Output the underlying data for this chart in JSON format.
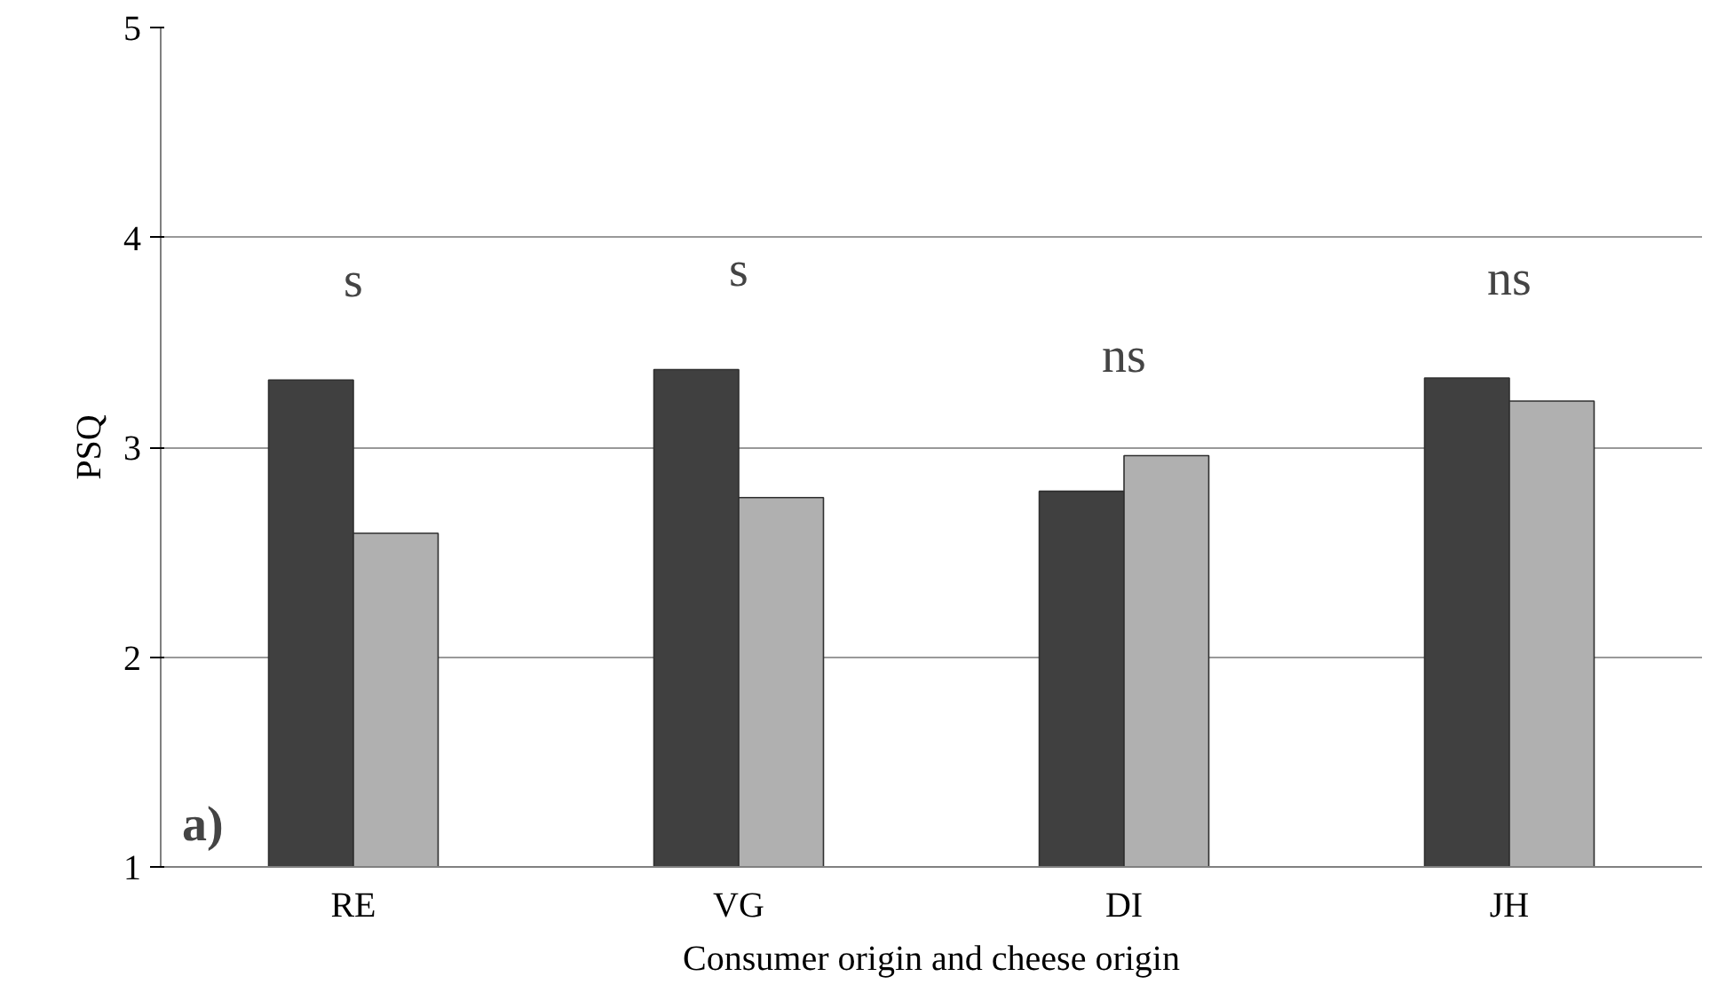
{
  "chart_data": {
    "type": "bar",
    "xlabel": "Consumer origin and cheese origin",
    "ylabel": "PSQ",
    "categories": [
      "RE",
      "VG",
      "DI",
      "JH"
    ],
    "series": [
      {
        "color": "#404040",
        "values": [
          3.32,
          3.37,
          2.79,
          3.33
        ]
      },
      {
        "color": "#b0b0b0",
        "values": [
          2.59,
          2.76,
          2.96,
          3.22
        ]
      }
    ],
    "ylim": [
      1,
      5
    ],
    "yticks": [
      1,
      2,
      3,
      4,
      5
    ],
    "grid": "y",
    "annotations": [
      "s",
      "s",
      "ns",
      "ns",
      "a)"
    ]
  }
}
